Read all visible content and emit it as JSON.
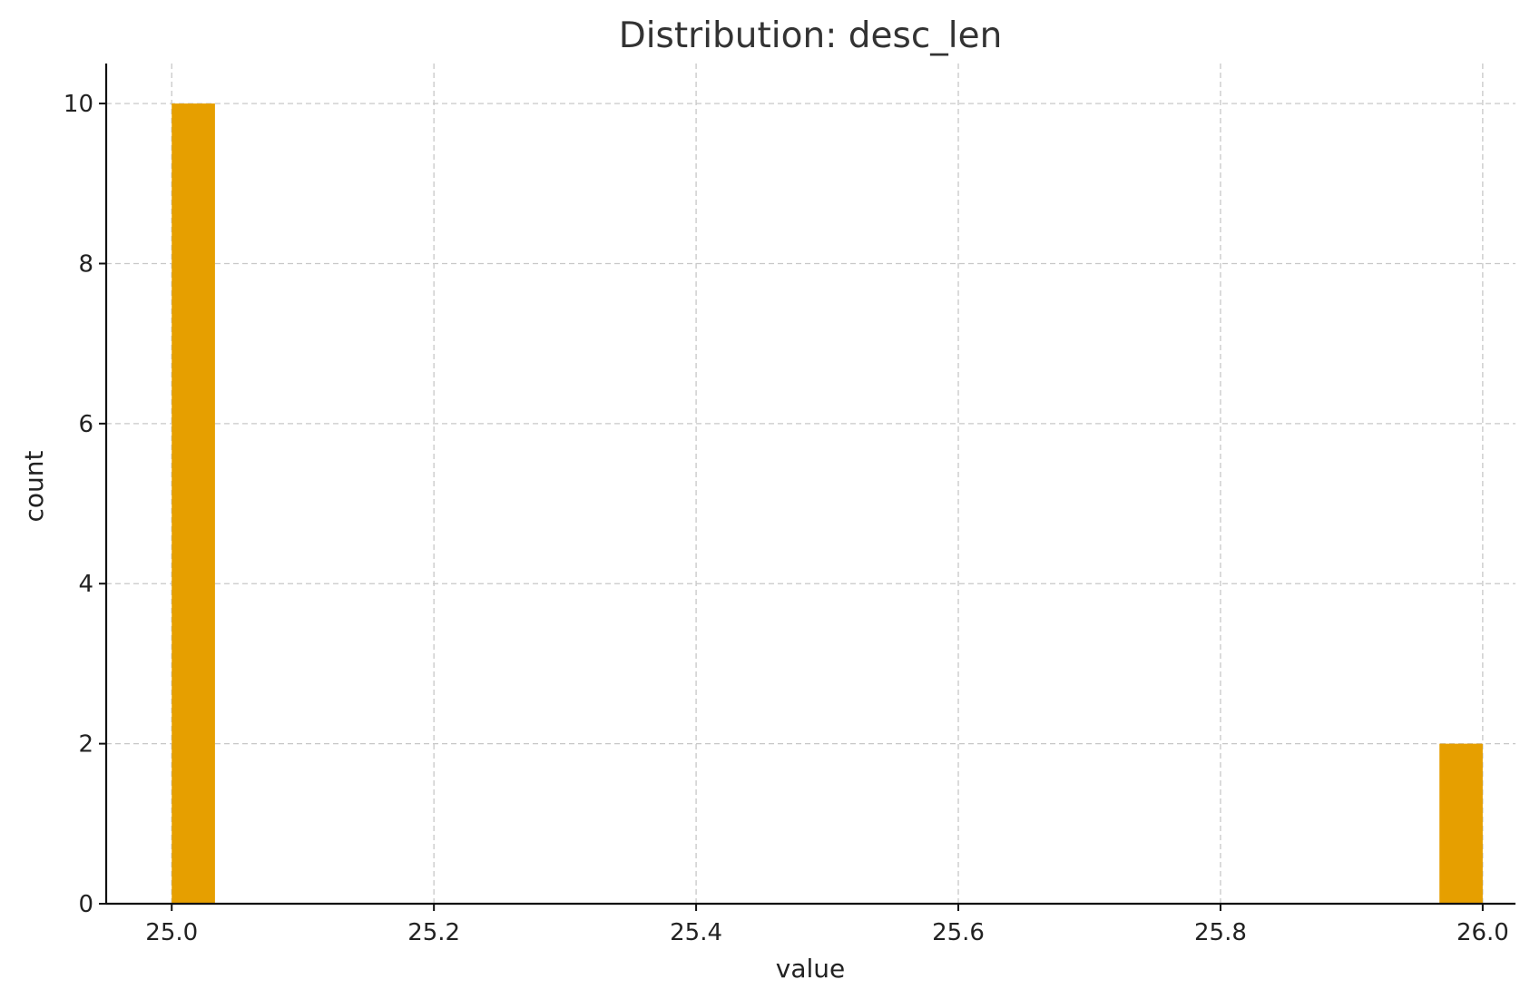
{
  "chart_data": {
    "type": "bar",
    "title": "Distribution: desc_len",
    "xlabel": "value",
    "ylabel": "count",
    "xlim": [
      24.95,
      26.025
    ],
    "ylim": [
      0,
      10.5
    ],
    "xticks": [
      25.0,
      25.2,
      25.4,
      25.6,
      25.8,
      26.0
    ],
    "xtick_labels": [
      "25.0",
      "25.2",
      "25.4",
      "25.6",
      "25.8",
      "26.0"
    ],
    "yticks": [
      0,
      2,
      4,
      6,
      8,
      10
    ],
    "ytick_labels": [
      "0",
      "2",
      "4",
      "6",
      "8",
      "10"
    ],
    "grid": true,
    "bars": [
      {
        "x0": 25.0,
        "x1": 25.033,
        "count": 10
      },
      {
        "x0": 25.967,
        "x1": 26.0,
        "count": 2
      }
    ],
    "bar_color": "#E69F00"
  }
}
